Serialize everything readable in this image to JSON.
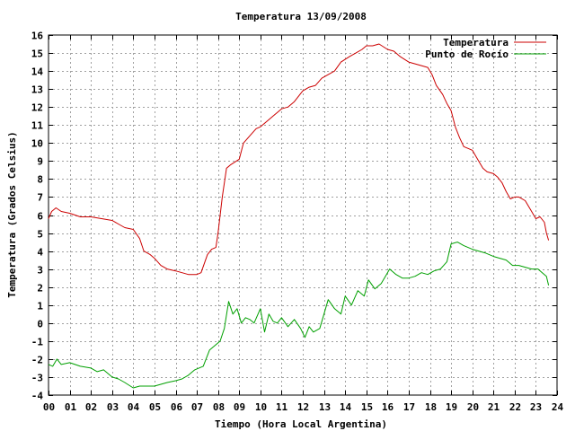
{
  "chart_data": {
    "type": "line",
    "title": "Temperatura 13/09/2008",
    "xlabel": "Tiempo (Hora Local Argentina)",
    "ylabel": "Temperatura (Grados Celsius)",
    "xlim": [
      0,
      24
    ],
    "ylim": [
      -4,
      16
    ],
    "x_ticks": [
      "00",
      "01",
      "02",
      "03",
      "04",
      "05",
      "06",
      "07",
      "08",
      "09",
      "10",
      "11",
      "12",
      "13",
      "14",
      "15",
      "16",
      "17",
      "18",
      "19",
      "20",
      "21",
      "22",
      "23",
      "24"
    ],
    "y_ticks": [
      "-4",
      "-3",
      "-2",
      "-1",
      "0",
      "1",
      "2",
      "3",
      "4",
      "5",
      "6",
      "7",
      "8",
      "9",
      "10",
      "11",
      "12",
      "13",
      "14",
      "15",
      "16"
    ],
    "grid": true,
    "legend_position": "top-right",
    "colors": {
      "Temperatura": "#cc0000",
      "Punto de Rocío": "#00a000"
    },
    "series": [
      {
        "name": "Temperatura",
        "x": [
          0,
          0.15,
          0.35,
          0.6,
          1.0,
          1.5,
          2.0,
          2.5,
          3.0,
          3.3,
          3.6,
          4.0,
          4.3,
          4.5,
          4.8,
          5.0,
          5.3,
          5.6,
          6.0,
          6.3,
          6.6,
          7.0,
          7.2,
          7.5,
          7.7,
          7.9,
          8.0,
          8.2,
          8.4,
          8.6,
          9.0,
          9.2,
          9.5,
          9.8,
          10.0,
          10.3,
          10.5,
          10.8,
          11.0,
          11.3,
          11.6,
          12.0,
          12.3,
          12.6,
          12.9,
          13.2,
          13.5,
          13.8,
          14.2,
          14.5,
          14.8,
          15.0,
          15.3,
          15.6,
          16.0,
          16.3,
          16.6,
          17.0,
          17.3,
          17.6,
          17.9,
          18.1,
          18.3,
          18.6,
          18.8,
          19.0,
          19.2,
          19.4,
          19.6,
          19.8,
          20.0,
          20.3,
          20.5,
          20.7,
          21.0,
          21.2,
          21.4,
          21.6,
          21.8,
          22.0,
          22.2,
          22.5,
          22.8,
          23.0,
          23.2,
          23.4,
          23.5,
          23.6
        ],
        "values": [
          5.8,
          6.2,
          6.4,
          6.2,
          6.1,
          5.9,
          5.9,
          5.8,
          5.7,
          5.5,
          5.3,
          5.2,
          4.7,
          4.0,
          3.8,
          3.6,
          3.2,
          3.0,
          2.9,
          2.8,
          2.7,
          2.7,
          2.8,
          3.8,
          4.1,
          4.2,
          5.0,
          7.0,
          8.6,
          8.8,
          9.1,
          10.0,
          10.4,
          10.8,
          10.9,
          11.2,
          11.4,
          11.7,
          11.9,
          12.0,
          12.3,
          12.9,
          13.1,
          13.2,
          13.6,
          13.8,
          14.0,
          14.5,
          14.8,
          15.0,
          15.2,
          15.4,
          15.4,
          15.5,
          15.2,
          15.1,
          14.8,
          14.5,
          14.4,
          14.3,
          14.2,
          13.8,
          13.2,
          12.7,
          12.2,
          11.8,
          10.9,
          10.3,
          9.8,
          9.7,
          9.6,
          9.0,
          8.6,
          8.4,
          8.3,
          8.1,
          7.8,
          7.3,
          6.9,
          7.0,
          7.0,
          6.8,
          6.2,
          5.8,
          5.9,
          5.6,
          5.0,
          4.6
        ]
      },
      {
        "name": "Punto de Rocío",
        "x": [
          0,
          0.2,
          0.4,
          0.6,
          1.0,
          1.5,
          2.0,
          2.3,
          2.6,
          3.0,
          3.3,
          3.6,
          4.0,
          4.3,
          4.6,
          5.0,
          5.3,
          5.6,
          6.0,
          6.3,
          6.6,
          6.9,
          7.1,
          7.3,
          7.6,
          7.9,
          8.1,
          8.3,
          8.5,
          8.7,
          8.9,
          9.1,
          9.3,
          9.5,
          9.7,
          10.0,
          10.2,
          10.4,
          10.6,
          10.8,
          11.0,
          11.3,
          11.6,
          11.9,
          12.1,
          12.3,
          12.5,
          12.8,
          13.0,
          13.2,
          13.5,
          13.8,
          14.0,
          14.3,
          14.6,
          14.9,
          15.1,
          15.4,
          15.7,
          15.9,
          16.1,
          16.4,
          16.7,
          17.0,
          17.3,
          17.6,
          17.9,
          18.2,
          18.5,
          18.8,
          19.0,
          19.3,
          19.6,
          20.0,
          20.3,
          20.6,
          21.0,
          21.3,
          21.6,
          21.9,
          22.2,
          22.5,
          22.8,
          23.1,
          23.3,
          23.5,
          23.6
        ],
        "values": [
          -2.3,
          -2.4,
          -2.0,
          -2.3,
          -2.2,
          -2.4,
          -2.5,
          -2.7,
          -2.6,
          -3.0,
          -3.1,
          -3.3,
          -3.6,
          -3.5,
          -3.5,
          -3.5,
          -3.4,
          -3.3,
          -3.2,
          -3.1,
          -2.9,
          -2.6,
          -2.5,
          -2.4,
          -1.5,
          -1.2,
          -1.0,
          -0.3,
          1.2,
          0.5,
          0.8,
          0.0,
          0.3,
          0.2,
          0.0,
          0.8,
          -0.5,
          0.5,
          0.1,
          0.0,
          0.3,
          -0.2,
          0.2,
          -0.3,
          -0.8,
          -0.2,
          -0.5,
          -0.3,
          0.5,
          1.3,
          0.8,
          0.5,
          1.5,
          1.0,
          1.8,
          1.5,
          2.4,
          1.9,
          2.2,
          2.6,
          3.0,
          2.7,
          2.5,
          2.5,
          2.6,
          2.8,
          2.7,
          2.9,
          3.0,
          3.4,
          4.4,
          4.5,
          4.3,
          4.1,
          4.0,
          3.9,
          3.7,
          3.6,
          3.5,
          3.2,
          3.2,
          3.1,
          3.0,
          3.0,
          2.8,
          2.6,
          2.1
        ]
      }
    ]
  }
}
